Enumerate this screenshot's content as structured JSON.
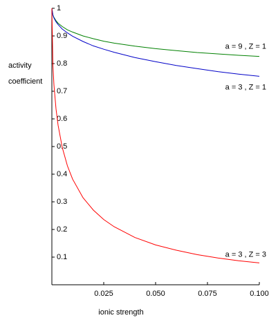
{
  "chart_data": {
    "type": "line",
    "xlabel": "ionic strength",
    "ylabel": [
      "activity",
      "coefficient"
    ],
    "x": [
      0,
      0.0005,
      0.001,
      0.002,
      0.003,
      0.005,
      0.0075,
      0.01,
      0.015,
      0.02,
      0.025,
      0.03,
      0.04,
      0.05,
      0.06,
      0.07,
      0.08,
      0.09,
      0.1
    ],
    "series": [
      {
        "name": "a = 9 , Z = 1",
        "color": "#008000",
        "values": [
          1,
          0.976,
          0.967,
          0.955,
          0.946,
          0.934,
          0.922,
          0.914,
          0.9,
          0.89,
          0.881,
          0.874,
          0.863,
          0.854,
          0.847,
          0.84,
          0.835,
          0.83,
          0.826
        ]
      },
      {
        "name": "a = 3 , Z = 1",
        "color": "#0000c8",
        "values": [
          1,
          0.975,
          0.965,
          0.951,
          0.941,
          0.925,
          0.911,
          0.899,
          0.88,
          0.864,
          0.852,
          0.841,
          0.822,
          0.807,
          0.793,
          0.782,
          0.771,
          0.762,
          0.754
        ]
      },
      {
        "name": "a = 3 , Z = 3",
        "color": "#ff0000",
        "values": [
          1,
          0.794,
          0.723,
          0.636,
          0.577,
          0.497,
          0.43,
          0.382,
          0.315,
          0.27,
          0.236,
          0.21,
          0.171,
          0.144,
          0.125,
          0.109,
          0.097,
          0.087,
          0.079
        ]
      }
    ],
    "xlim": [
      0,
      0.1
    ],
    "ylim": [
      0,
      1
    ],
    "xticks": [
      0.025,
      {
        "value": 0.05,
        "label": "0.050"
      },
      0.075,
      {
        "value": 0.1,
        "label": "0.100"
      }
    ],
    "yticks": [
      0.1,
      0.2,
      0.3,
      0.4,
      0.5,
      0.6,
      0.7,
      0.8,
      0.9,
      1
    ]
  }
}
